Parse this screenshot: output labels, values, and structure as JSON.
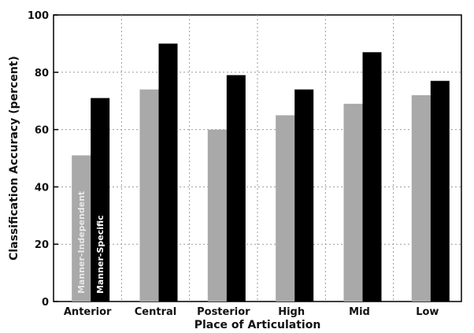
{
  "chart_data": {
    "type": "bar",
    "xlabel": "Place of Articulation",
    "ylabel": "Classification Accuracy (percent)",
    "ylim": [
      0,
      100
    ],
    "yticks": [
      0,
      20,
      40,
      60,
      80,
      100
    ],
    "grid": true,
    "categories": [
      "Anterior",
      "Central",
      "Posterior",
      "High",
      "Mid",
      "Low"
    ],
    "series": [
      {
        "name": "Manner-Independent",
        "color": "#a9a9a9",
        "values": [
          51,
          74,
          60,
          65,
          69,
          72
        ]
      },
      {
        "name": "Manner-Specific",
        "color": "#000000",
        "values": [
          71,
          90,
          79,
          74,
          87,
          77
        ]
      }
    ]
  }
}
